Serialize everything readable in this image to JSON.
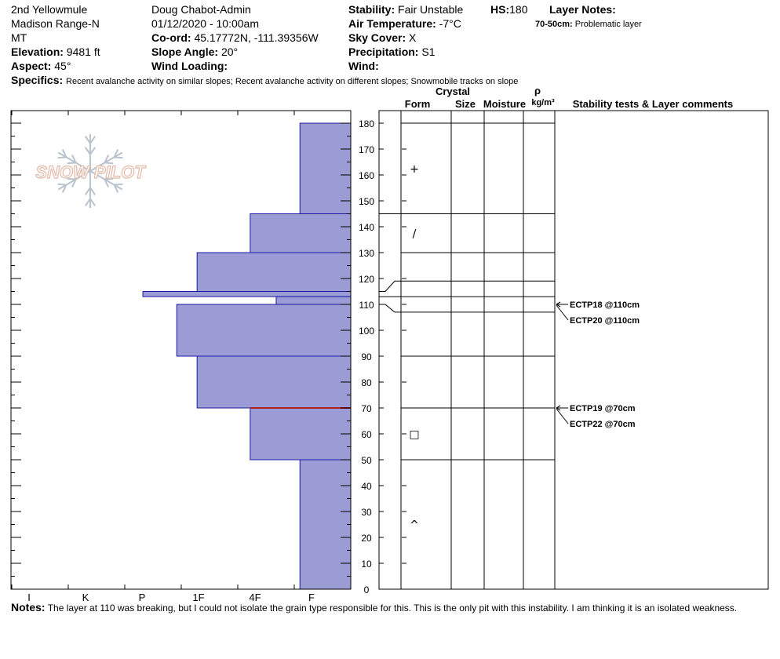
{
  "header": {
    "location": "2nd Yellowmule",
    "range": "Madison Range-N",
    "state": "MT",
    "elevation_label": "Elevation:",
    "elevation": "9481 ft",
    "aspect_label": "Aspect:",
    "aspect": "45°",
    "observer": "Doug Chabot-Admin",
    "datetime": "01/12/2020 - 10:00am",
    "coord_label": "Co-ord:",
    "coord": "45.17772N, -111.39356W",
    "slope_label": "Slope Angle:",
    "slope": "20°",
    "wind_loading_label": "Wind Loading:",
    "wind_loading": "",
    "stability_label": "Stability:",
    "stability": "Fair Unstable",
    "air_temp_label": "Air Temperature:",
    "air_temp": "-7°C",
    "sky_label": "Sky Cover:",
    "sky": "X",
    "precip_label": "Precipitation:",
    "precip": "S1",
    "wind_label": "Wind:",
    "wind": "",
    "hs_label": "HS:",
    "hs": "180",
    "layer_notes_label": "Layer Notes:",
    "layer_notes_range": "70-50cm:",
    "layer_notes_text": "Problematic layer",
    "specifics_label": "Specifics:",
    "specifics": "Recent avalanche activity on similar slopes; Recent avalanche activity on different slopes; Snowmobile tracks on slope"
  },
  "logo_text": "SNOW PILOT",
  "columns": {
    "crystal": "Crystal",
    "form": "Form",
    "size": "Size",
    "moisture": "Moisture",
    "rho": "ρ",
    "density_unit": "kg/m³",
    "stability_tests": "Stability tests & Layer comments"
  },
  "notes_label": "Notes:",
  "notes": "The layer at 110 was breaking, but I could not isolate the grain type responsible for this. This is the only pit with this instability. I am thinking it is an isolated weakness.",
  "colors": {
    "bar_fill": "#9b9bd6",
    "bar_stroke": "#1a1aa0",
    "weak_line": "#b22222"
  },
  "chart_data": {
    "type": "snow-profile",
    "height_axis": {
      "min": 0,
      "max": 180,
      "ticks": [
        0,
        10,
        20,
        30,
        40,
        50,
        60,
        70,
        80,
        90,
        100,
        110,
        120,
        130,
        140,
        150,
        160,
        170,
        180
      ]
    },
    "hardness_categories": [
      "I",
      "K",
      "P",
      "1F",
      "4F",
      "F"
    ],
    "hardness_layers": [
      {
        "top": 180,
        "bottom": 145,
        "hardness": "F"
      },
      {
        "top": 145,
        "bottom": 130,
        "hardness": "4F"
      },
      {
        "top": 130,
        "bottom": 115,
        "hardness": "1F"
      },
      {
        "top": 115,
        "bottom": 113,
        "hardness": "P+"
      },
      {
        "top": 113,
        "bottom": 110,
        "hardness": "4F+"
      },
      {
        "top": 110,
        "bottom": 90,
        "hardness": "1F+"
      },
      {
        "top": 90,
        "bottom": 70,
        "hardness": "1F"
      },
      {
        "top": 70,
        "bottom": 50,
        "hardness": "4F"
      },
      {
        "top": 50,
        "bottom": 0,
        "hardness": "F"
      }
    ],
    "hardness_values": {
      "F": 0.9,
      "4F": 1.78,
      "4F+": 1.32,
      "1F": 2.72,
      "1F+": 3.08,
      "P+": 3.68
    },
    "layer_boundaries": [
      180,
      145,
      130,
      119,
      113,
      107,
      90,
      70,
      50
    ],
    "connector_links": [
      {
        "left": 115,
        "right": 119
      },
      {
        "left": 110,
        "right": 107
      }
    ],
    "grain_forms": [
      {
        "height": 162.5,
        "symbol": "+"
      },
      {
        "height": 137.5,
        "symbol": "/"
      },
      {
        "height": 60,
        "symbol": "□"
      },
      {
        "height": 25,
        "symbol": "^"
      }
    ],
    "weak_layer": 70,
    "stability_tests": [
      {
        "label": "ECTP18 @110cm",
        "height": 110
      },
      {
        "label": "ECTP20 @110cm",
        "height": 110
      },
      {
        "label": "ECTP19 @70cm",
        "height": 70
      },
      {
        "label": "ECTP22 @70cm",
        "height": 70
      }
    ]
  }
}
